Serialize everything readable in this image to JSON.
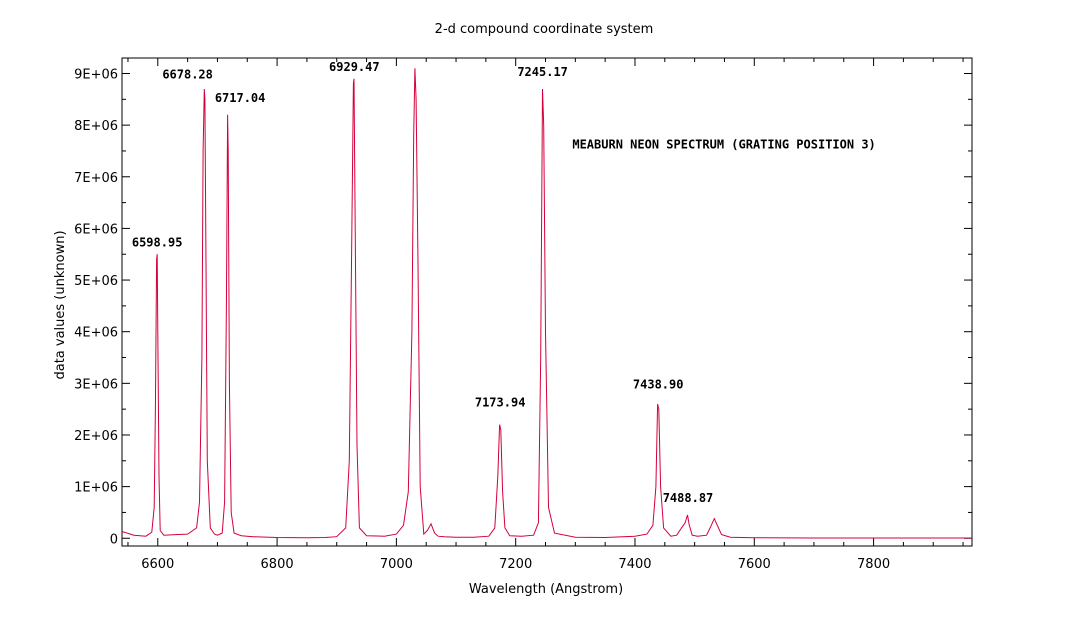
{
  "chart_data": {
    "type": "line",
    "title": "2-d compound coordinate system",
    "xlabel": "Wavelength (Angstrom)",
    "ylabel": "data values (unknown)",
    "xlim": [
      6540,
      7965
    ],
    "ylim": [
      -150000,
      9300000
    ],
    "grid": false,
    "line_color": "#d4003a",
    "x_ticks": [
      {
        "value": 6600,
        "label": "6600"
      },
      {
        "value": 6800,
        "label": "6800"
      },
      {
        "value": 7000,
        "label": "7000"
      },
      {
        "value": 7200,
        "label": "7200"
      },
      {
        "value": 7400,
        "label": "7400"
      },
      {
        "value": 7600,
        "label": "7600"
      },
      {
        "value": 7800,
        "label": "7800"
      }
    ],
    "y_ticks": [
      {
        "value": 0,
        "label": "0"
      },
      {
        "value": 1000000,
        "label": "1E+06"
      },
      {
        "value": 2000000,
        "label": "2E+06"
      },
      {
        "value": 3000000,
        "label": "3E+06"
      },
      {
        "value": 4000000,
        "label": "4E+06"
      },
      {
        "value": 5000000,
        "label": "5E+06"
      },
      {
        "value": 6000000,
        "label": "6E+06"
      },
      {
        "value": 7000000,
        "label": "7E+06"
      },
      {
        "value": 8000000,
        "label": "8E+06"
      },
      {
        "value": 9000000,
        "label": "9E+06"
      }
    ],
    "annotations": [
      {
        "text": "MEABURN NEON SPECTRUM (GRATING POSITION 3)",
        "x": 7295,
        "y": 7550000,
        "anchor": "start"
      },
      {
        "text": "6598.95",
        "x": 6598.95,
        "y": 5650000,
        "anchor": "middle"
      },
      {
        "text": "6678.28",
        "x": 6650,
        "y": 8900000,
        "anchor": "middle"
      },
      {
        "text": "6717.04",
        "x": 6738,
        "y": 8450000,
        "anchor": "middle"
      },
      {
        "text": "6929.47",
        "x": 6929.47,
        "y": 9050000,
        "anchor": "middle"
      },
      {
        "text": "7245.17",
        "x": 7245.17,
        "y": 8950000,
        "anchor": "middle"
      },
      {
        "text": "7173.94",
        "x": 7173.94,
        "y": 2550000,
        "anchor": "middle"
      },
      {
        "text": "7438.90",
        "x": 7438.9,
        "y": 2900000,
        "anchor": "middle"
      },
      {
        "text": "7488.87",
        "x": 7488.87,
        "y": 700000,
        "anchor": "middle"
      }
    ],
    "series": [
      {
        "x": [
          6540,
          6560,
          6580,
          6590,
          6594,
          6596,
          6598,
          6599,
          6600,
          6602,
          6604,
          6610,
          6630,
          6650,
          6665,
          6670,
          6674,
          6676,
          6678,
          6679,
          6681,
          6683,
          6688,
          6695,
          6700,
          6708,
          6712,
          6715,
          6717,
          6718,
          6720,
          6723,
          6728,
          6740,
          6760,
          6800,
          6850,
          6880,
          6900,
          6915,
          6921,
          6925,
          6928,
          6929,
          6931,
          6934,
          6938,
          6950,
          6980,
          7000,
          7012,
          7020,
          7026,
          7029,
          7031,
          7033,
          7036,
          7040,
          7046,
          7052,
          7058,
          7064,
          7070,
          7080,
          7100,
          7130,
          7155,
          7165,
          7170,
          7173,
          7175,
          7178,
          7182,
          7190,
          7210,
          7230,
          7238,
          7242,
          7245,
          7247,
          7250,
          7255,
          7265,
          7300,
          7350,
          7400,
          7420,
          7430,
          7435,
          7438,
          7440,
          7443,
          7448,
          7460,
          7470,
          7478,
          7484,
          7488,
          7491,
          7496,
          7505,
          7520,
          7528,
          7533,
          7538,
          7545,
          7560,
          7600,
          7700,
          7800,
          7900,
          7965
        ],
        "y": [
          130000,
          60000,
          40000,
          120000,
          600000,
          2500000,
          5400000,
          5500000,
          4000000,
          1200000,
          150000,
          60000,
          70000,
          80000,
          200000,
          700000,
          3500000,
          7500000,
          8700000,
          8500000,
          5000000,
          1500000,
          200000,
          80000,
          60000,
          100000,
          700000,
          4500000,
          8200000,
          7500000,
          3000000,
          500000,
          100000,
          50000,
          30000,
          15000,
          10000,
          15000,
          30000,
          200000,
          1500000,
          5500000,
          8800000,
          8900000,
          6000000,
          1800000,
          200000,
          50000,
          40000,
          80000,
          250000,
          900000,
          4000000,
          7800000,
          9100000,
          8500000,
          5500000,
          1000000,
          80000,
          150000,
          280000,
          100000,
          40000,
          30000,
          20000,
          20000,
          40000,
          200000,
          1200000,
          2200000,
          2100000,
          900000,
          200000,
          50000,
          40000,
          60000,
          300000,
          3500000,
          8700000,
          8000000,
          4000000,
          600000,
          100000,
          20000,
          15000,
          40000,
          80000,
          250000,
          1000000,
          2600000,
          2500000,
          1000000,
          200000,
          40000,
          60000,
          200000,
          300000,
          450000,
          250000,
          60000,
          40000,
          60000,
          250000,
          380000,
          250000,
          70000,
          20000,
          10000,
          5000,
          5000,
          5000,
          5000
        ]
      }
    ]
  }
}
